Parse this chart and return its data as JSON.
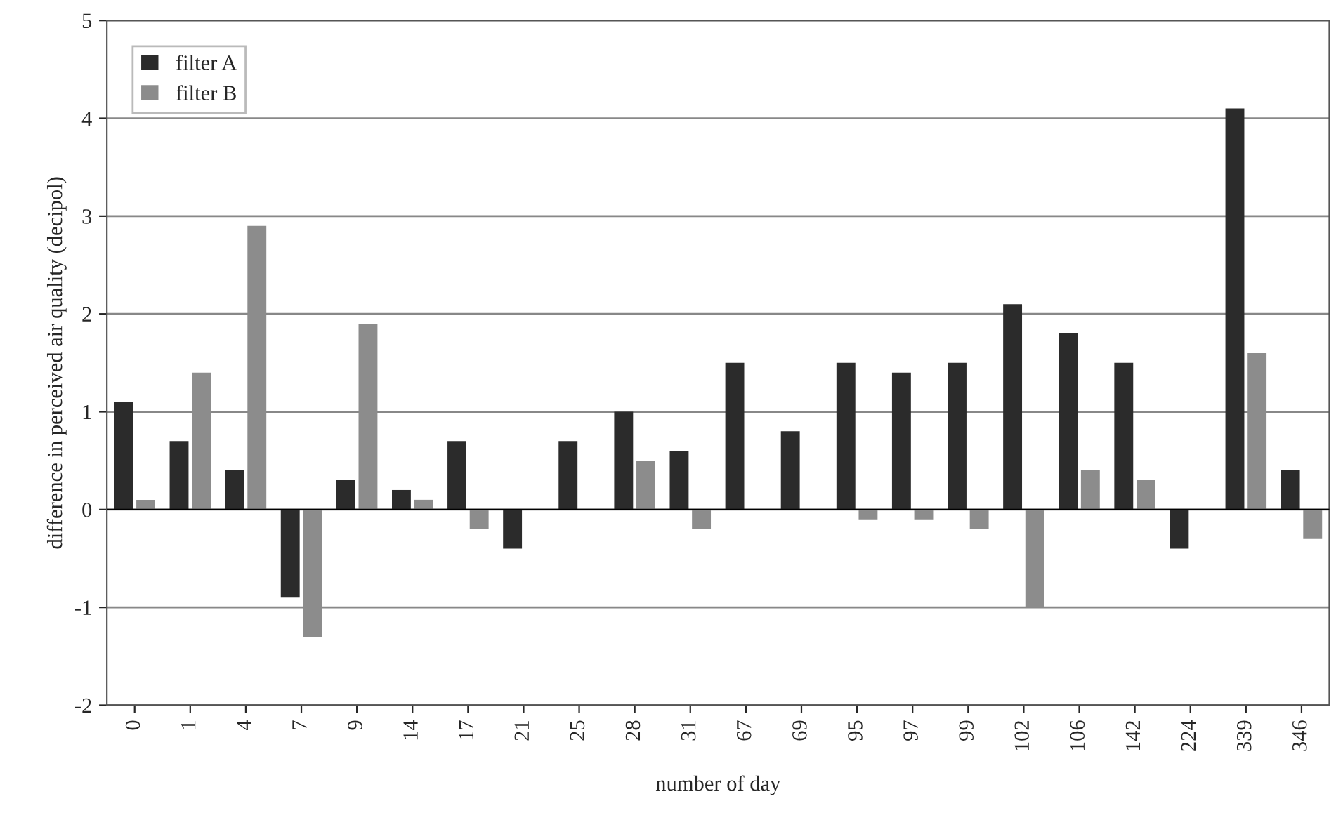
{
  "chart_data": {
    "type": "bar",
    "xlabel": "number of day",
    "ylabel": "difference in perceived air quality (decipol)",
    "categories": [
      "0",
      "1",
      "4",
      "7",
      "9",
      "14",
      "17",
      "21",
      "25",
      "28",
      "31",
      "67",
      "69",
      "95",
      "97",
      "99",
      "102",
      "106",
      "142",
      "224",
      "339",
      "346"
    ],
    "series": [
      {
        "name": "filter A",
        "color": "#2b2b2b",
        "values": [
          1.1,
          0.7,
          0.4,
          -0.9,
          0.3,
          0.2,
          0.7,
          -0.4,
          0.7,
          1.0,
          0.6,
          1.5,
          0.8,
          1.5,
          1.4,
          1.5,
          2.1,
          1.8,
          1.5,
          -0.4,
          4.1,
          0.4
        ]
      },
      {
        "name": "filter B",
        "color": "#8c8c8c",
        "values": [
          0.1,
          1.4,
          2.9,
          -1.3,
          1.9,
          0.1,
          -0.2,
          null,
          null,
          0.5,
          -0.2,
          null,
          null,
          -0.1,
          -0.1,
          -0.2,
          -1.0,
          0.4,
          0.3,
          null,
          1.6,
          -0.3
        ]
      }
    ],
    "ylim": [
      -2,
      5
    ],
    "yticks": [
      -2,
      -1,
      0,
      1,
      2,
      3,
      4,
      5
    ],
    "grid": "y",
    "legend": "top left"
  }
}
